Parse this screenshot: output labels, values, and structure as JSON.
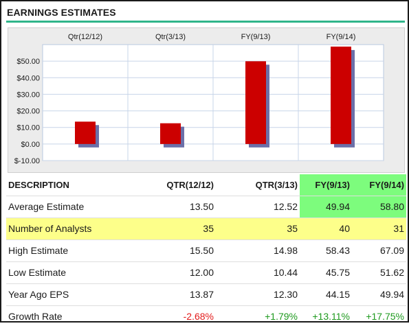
{
  "header": {
    "title": "EARNINGS ESTIMATES"
  },
  "colors": {
    "accent_rule": "#2fb58a",
    "bar": "#cc0000",
    "bar_shadow": "#6b6fa8",
    "highlight_row": "#fdff8a",
    "highlight_col": "#7dfc7d",
    "negative": "#e31b1b",
    "positive": "#1e9a1e"
  },
  "chart_data": {
    "type": "bar",
    "categories": [
      "Qtr(12/12)",
      "Qtr(3/13)",
      "FY(9/13)",
      "FY(9/14)"
    ],
    "values": [
      13.5,
      12.52,
      49.94,
      58.8
    ],
    "ylim": [
      -10,
      60
    ],
    "yticks": [
      "$-10.00",
      "$0.00",
      "$10.00",
      "$20.00",
      "$30.00",
      "$40.00",
      "$50.00"
    ],
    "ytick_values": [
      -10,
      0,
      10,
      20,
      30,
      40,
      50
    ],
    "grid": true,
    "legend": false
  },
  "table": {
    "columns": [
      "DESCRIPTION",
      "QTR(12/12)",
      "QTR(3/13)",
      "FY(9/13)",
      "FY(9/14)"
    ],
    "rows": [
      {
        "label": "Average Estimate",
        "values": [
          "13.50",
          "12.52",
          "49.94",
          "58.80"
        ]
      },
      {
        "label": "Number of Analysts",
        "values": [
          "35",
          "35",
          "40",
          "31"
        ]
      },
      {
        "label": "High Estimate",
        "values": [
          "15.50",
          "14.98",
          "58.43",
          "67.09"
        ]
      },
      {
        "label": "Low Estimate",
        "values": [
          "12.00",
          "10.44",
          "45.75",
          "51.62"
        ]
      },
      {
        "label": "Year Ago EPS",
        "values": [
          "13.87",
          "12.30",
          "44.15",
          "49.94"
        ]
      },
      {
        "label": "Growth Rate",
        "values": [
          "-2.68%",
          "+1.79%",
          "+13.11%",
          "+17.75%"
        ]
      }
    ]
  }
}
